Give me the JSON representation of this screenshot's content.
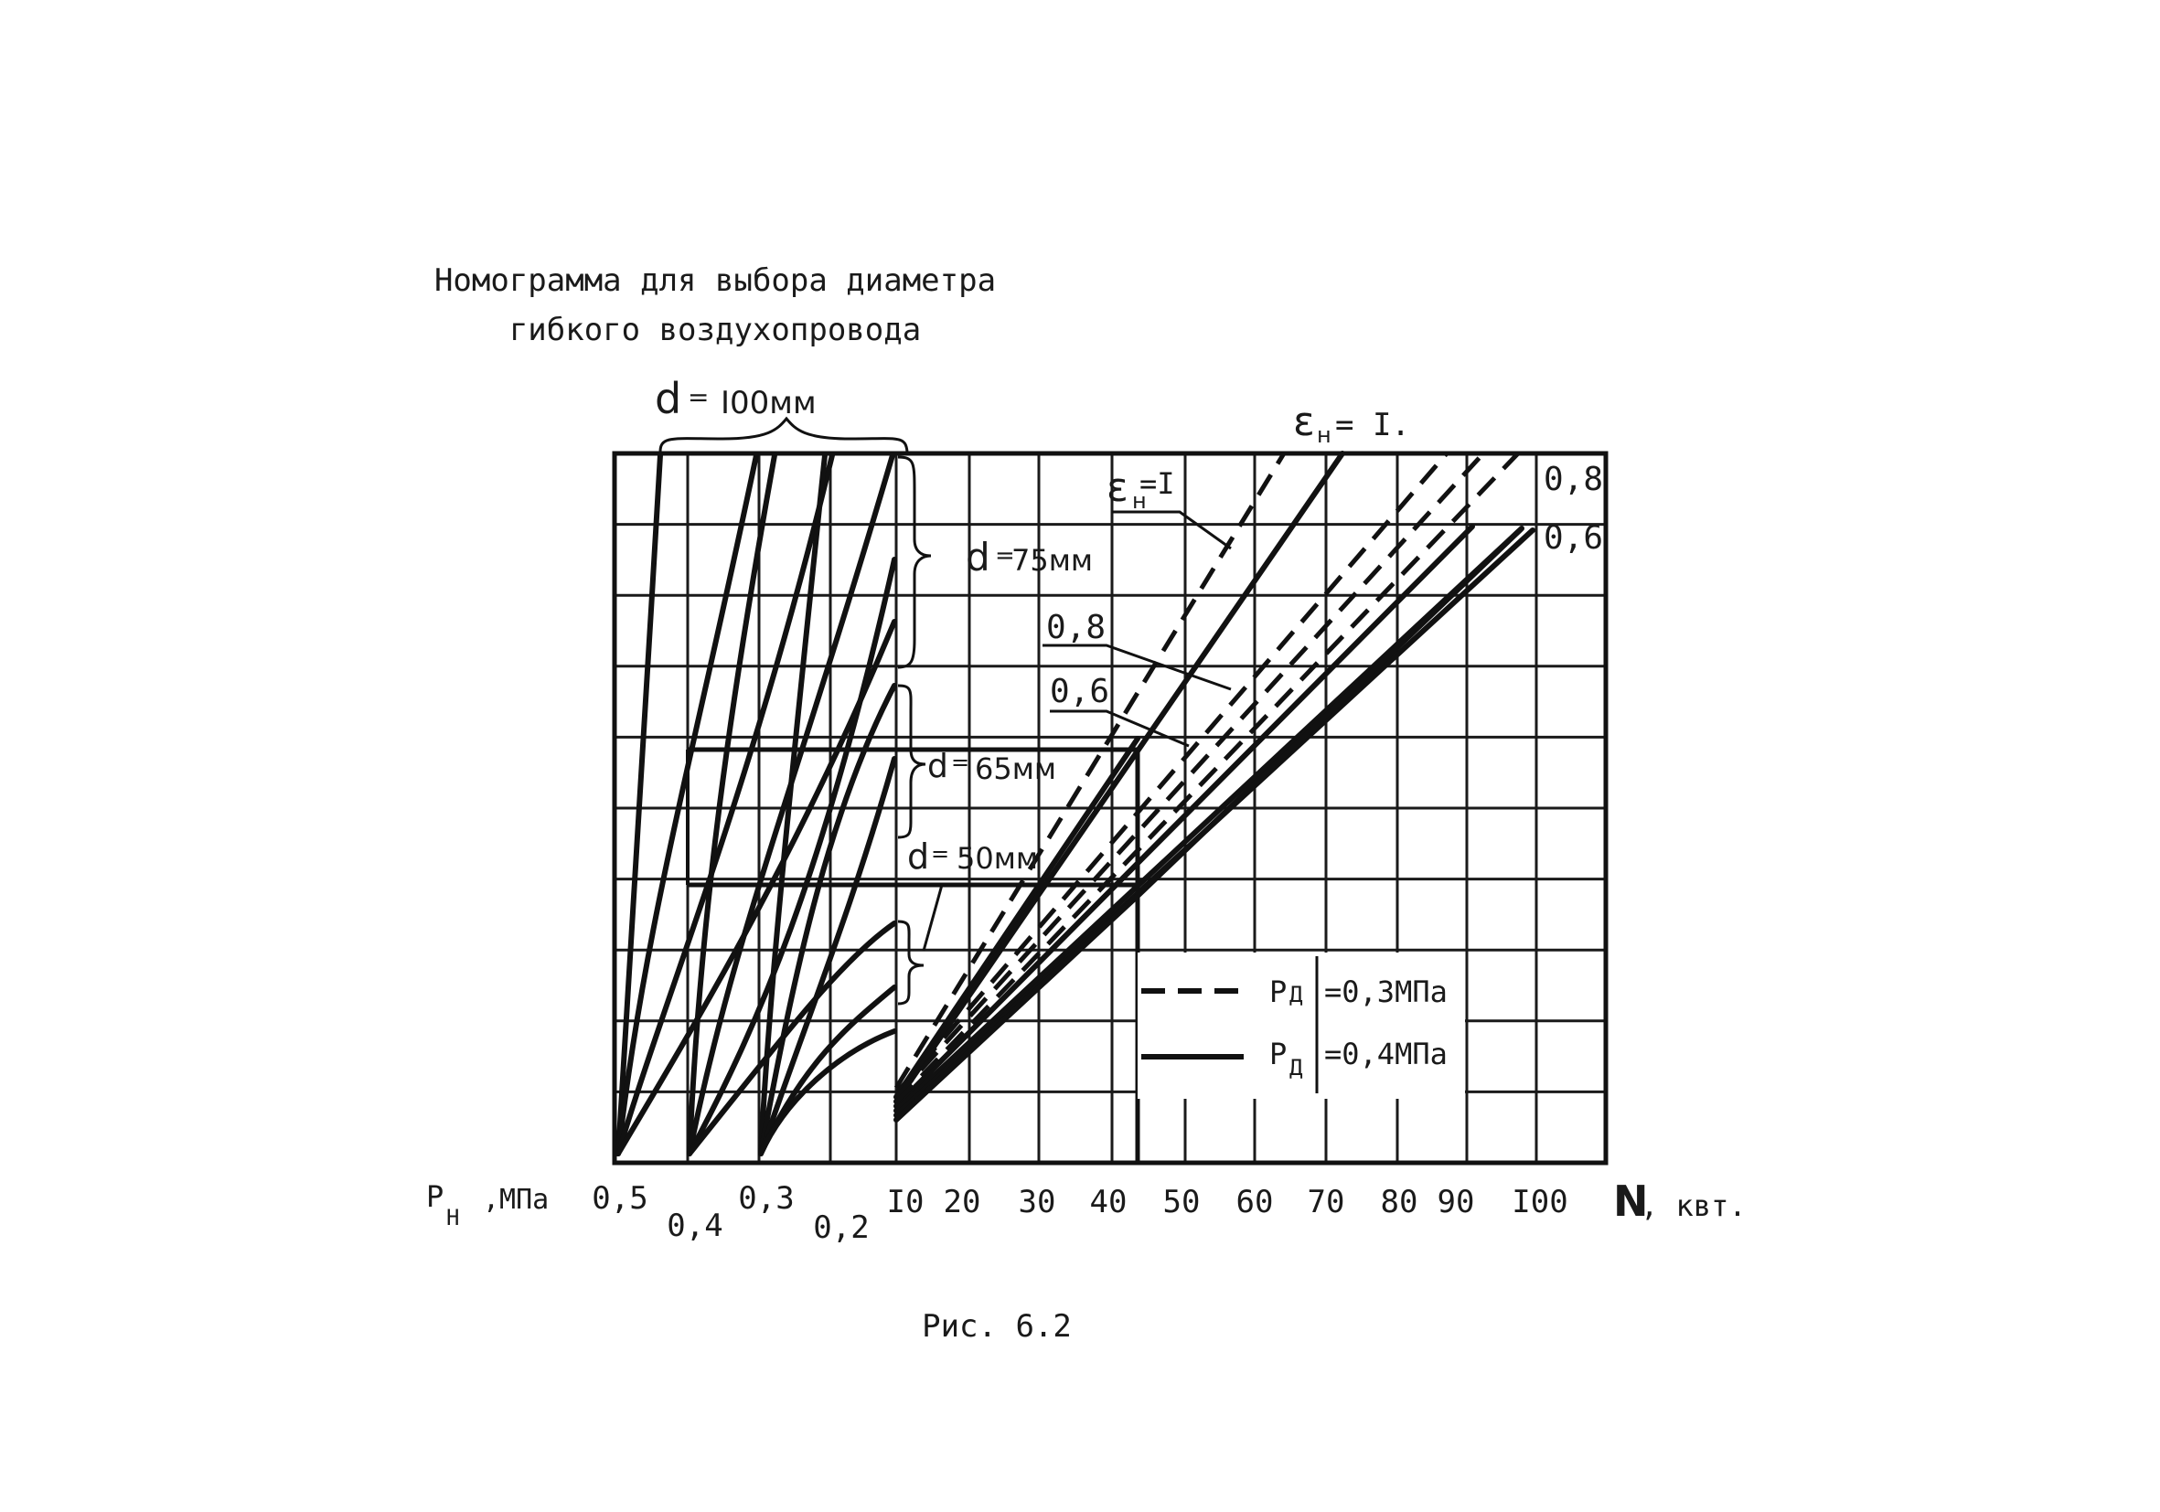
{
  "title_line1": "Номограмма для выбора диаметра",
  "title_line2": "гибкого воздухопровода",
  "caption": "Рис. 6.2",
  "left_axis": {
    "label_main": "P",
    "label_sub": "Н",
    "label_unit": ",МПа",
    "ticks": [
      "0,5",
      "0,4",
      "0,3",
      "0,2"
    ]
  },
  "right_axis": {
    "label_main": "N",
    "label_unit": ", квт.",
    "ticks": [
      "I0",
      "20",
      "30",
      "40",
      "50",
      "60",
      "70",
      "80",
      "90",
      "I00"
    ]
  },
  "diameter_labels": {
    "d100": {
      "d": "d",
      "eq": "=",
      "value": "I00мм"
    },
    "d75": {
      "d": "d",
      "eq": "=",
      "value": "75мм"
    },
    "d65": {
      "d": "d",
      "eq": "=",
      "value": "65мм"
    },
    "d50": {
      "d": "d",
      "eq": "=",
      "value": "50мм"
    }
  },
  "efficiency_labels": {
    "top_eps": {
      "sym": "ε",
      "sub": "н",
      "val": "= I."
    },
    "inner_eps": {
      "sym": "ε",
      "sub": "н",
      "val": "=I"
    },
    "right_08": "0,8",
    "right_06": "0,6",
    "inner_08": "0,8",
    "inner_06": "0,6"
  },
  "legend": {
    "dashed": {
      "p": "Р",
      "sub": "Д",
      "text": "=0,3МПа"
    },
    "solid": {
      "p": "Р",
      "sub": "Д",
      "text": "=0,4МПа"
    }
  },
  "chart_data": {
    "type": "nomogram",
    "left_pressures_MPa": [
      0.5,
      0.4,
      0.3,
      0.2
    ],
    "power_kW_ticks": [
      10,
      20,
      30,
      40,
      50,
      60,
      70,
      80,
      90,
      100
    ],
    "diameters_mm": [
      100,
      75,
      65,
      50
    ],
    "efficiency_values": [
      1,
      0.8,
      0.6
    ],
    "series": [
      {
        "name": "Рд=0,3МПа",
        "style": "dashed"
      },
      {
        "name": "Рд=0,4МПа",
        "style": "solid"
      }
    ]
  }
}
